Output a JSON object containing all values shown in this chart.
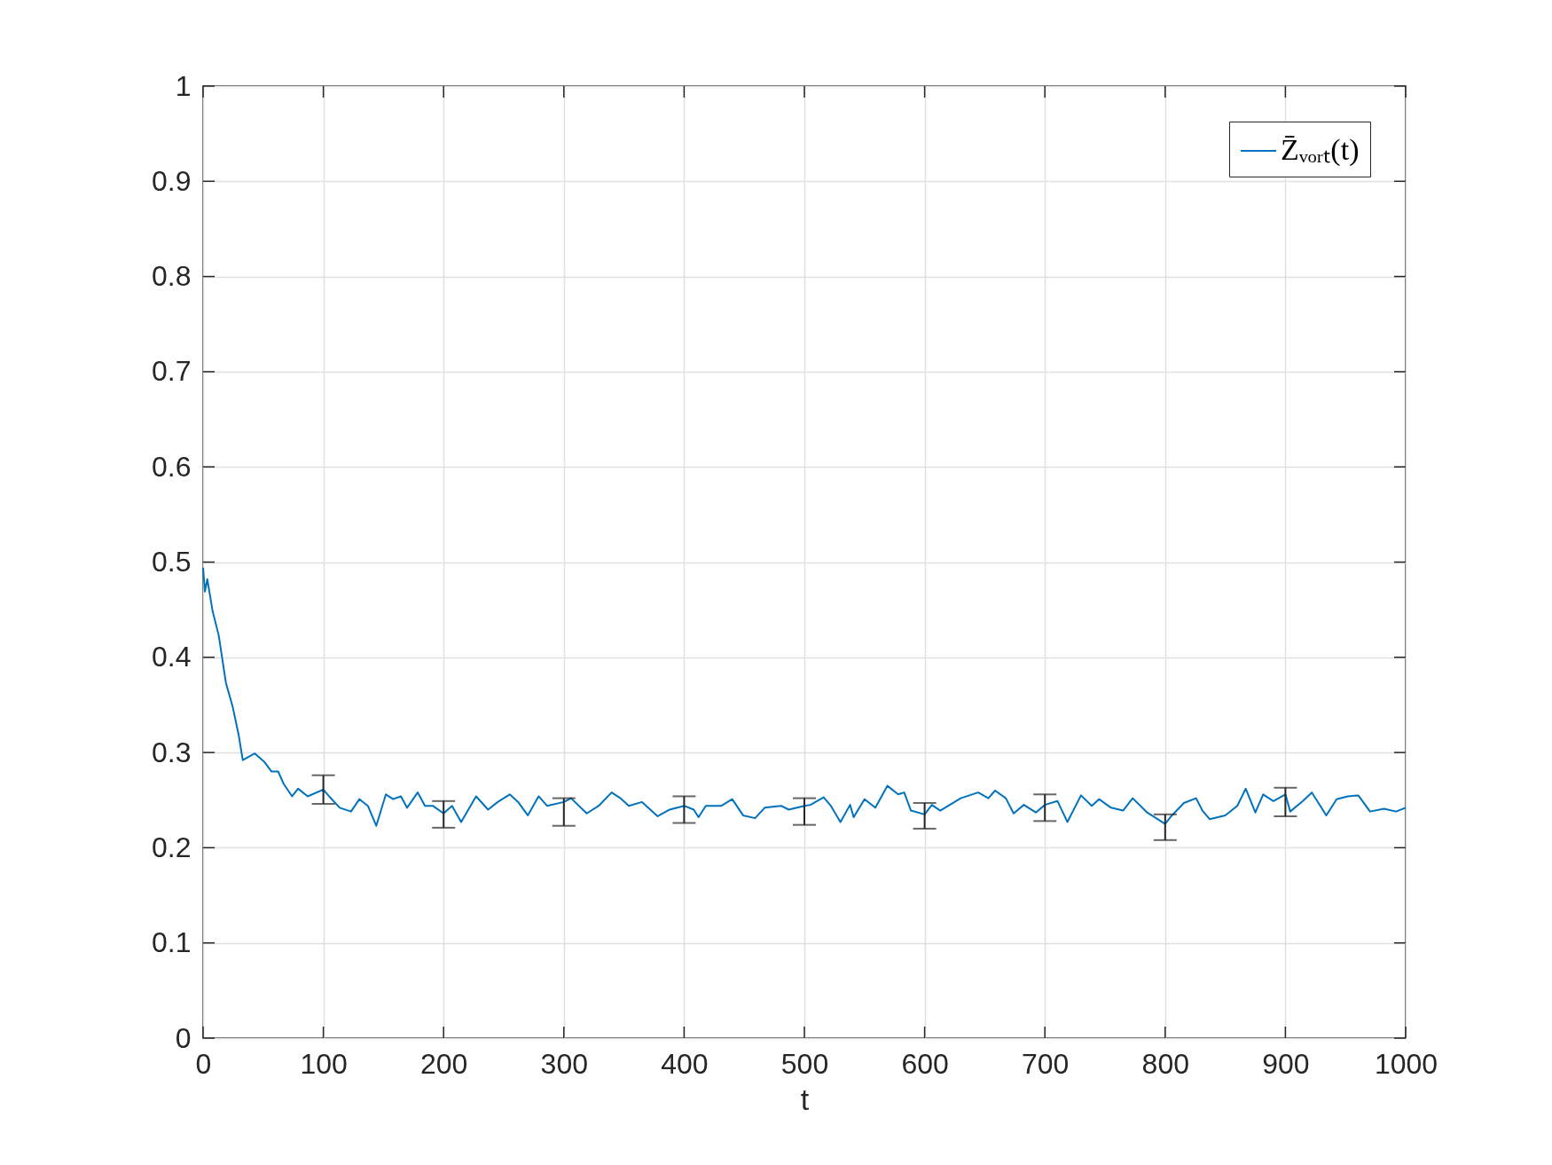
{
  "chart_data": {
    "type": "line",
    "xlabel": "t",
    "xlim": [
      0,
      1000
    ],
    "xticks": [
      0,
      100,
      200,
      300,
      400,
      500,
      600,
      700,
      800,
      900,
      1000
    ],
    "ylim": [
      0,
      1
    ],
    "yticks": [
      0,
      0.1,
      0.2,
      0.3,
      0.4,
      0.5,
      0.6,
      0.7,
      0.8,
      0.9,
      1
    ],
    "grid": true,
    "legend": "top right",
    "line_style": "solid",
    "series": [
      {
        "name": "Z̄ᵥₒᵣₜ(t)",
        "color": "#0072bd",
        "x": [
          0,
          1.5,
          3.5,
          8,
          13,
          19,
          24.6,
          29.5,
          33,
          43,
          51,
          57,
          62.5,
          67,
          74,
          79,
          87,
          100,
          105.5,
          113.6,
          123,
          130,
          137,
          144,
          152,
          158,
          164.5,
          169.6,
          178.5,
          184.5,
          191,
          200,
          207,
          214.6,
          227,
          237,
          245,
          255,
          262,
          270,
          279,
          286,
          300,
          306,
          319,
          329,
          339.7,
          347,
          354,
          365,
          378,
          388,
          400,
          408,
          412,
          418,
          431,
          440,
          449,
          459,
          467,
          480.6,
          487,
          500,
          505,
          516,
          522,
          530,
          538,
          541,
          550,
          559,
          569,
          578,
          583,
          588.6,
          600,
          606,
          613,
          630,
          644.5,
          653,
          658.6,
          667.5,
          674,
          682.5,
          692.5,
          700,
          710.5,
          718.7,
          730,
          739,
          745,
          755,
          765,
          773,
          785,
          800,
          805,
          815.6,
          825.7,
          831,
          837,
          850,
          860,
          867,
          875,
          881.5,
          890,
          900,
          904,
          914.5,
          922,
          934,
          942.6,
          952,
          960.6,
          970.4,
          982,
          992,
          1000
        ],
        "errors": [
          null,
          null,
          null,
          null,
          null,
          null,
          null,
          null,
          null,
          null,
          null,
          null,
          null,
          null,
          null,
          null,
          null,
          [
            0.246,
            0.276
          ],
          null,
          null,
          null,
          null,
          null,
          null,
          null,
          null,
          null,
          null,
          null,
          null,
          null,
          [
            0.221,
            0.249
          ],
          null,
          null,
          null,
          null,
          null,
          null,
          null,
          null,
          null,
          null,
          [
            0.223,
            0.252
          ],
          null,
          null,
          null,
          null,
          null,
          null,
          null,
          null,
          null,
          [
            0.226,
            0.254
          ],
          null,
          null,
          null,
          null,
          null,
          null,
          null,
          null,
          null,
          null,
          [
            0.224,
            0.252
          ],
          null,
          null,
          null,
          null,
          null,
          null,
          null,
          null,
          null,
          null,
          null,
          null,
          [
            0.22,
            0.247
          ],
          null,
          null,
          null,
          null,
          null,
          null,
          null,
          null,
          null,
          null,
          [
            0.228,
            0.256
          ],
          null,
          null,
          null,
          null,
          null,
          null,
          null,
          null,
          null,
          [
            0.208,
            0.235
          ],
          null,
          null,
          null,
          null,
          null,
          null,
          null,
          null,
          null,
          null,
          null,
          [
            0.233,
            0.263
          ],
          null,
          null,
          null,
          null,
          null,
          null,
          null,
          null,
          null,
          null,
          null
        ],
        "values": [
          0.494,
          0.469,
          0.482,
          0.448,
          0.423,
          0.373,
          0.348,
          0.319,
          0.292,
          0.299,
          0.29,
          0.28,
          0.28,
          0.267,
          0.254,
          0.262,
          0.254,
          0.261,
          0.253,
          0.242,
          0.238,
          0.251,
          0.244,
          0.223,
          0.256,
          0.251,
          0.254,
          0.242,
          0.258,
          0.244,
          0.244,
          0.236,
          0.244,
          0.227,
          0.254,
          0.24,
          0.248,
          0.256,
          0.248,
          0.234,
          0.254,
          0.244,
          0.248,
          0.252,
          0.236,
          0.244,
          0.258,
          0.252,
          0.244,
          0.248,
          0.233,
          0.24,
          0.244,
          0.24,
          0.232,
          0.244,
          0.244,
          0.251,
          0.234,
          0.231,
          0.242,
          0.244,
          0.24,
          0.244,
          0.245,
          0.253,
          0.244,
          0.227,
          0.245,
          0.232,
          0.251,
          0.242,
          0.265,
          0.256,
          0.258,
          0.239,
          0.235,
          0.245,
          0.239,
          0.252,
          0.258,
          0.252,
          0.26,
          0.252,
          0.236,
          0.245,
          0.237,
          0.245,
          0.249,
          0.227,
          0.255,
          0.244,
          0.251,
          0.242,
          0.239,
          0.252,
          0.237,
          0.225,
          0.233,
          0.247,
          0.252,
          0.239,
          0.23,
          0.234,
          0.244,
          0.262,
          0.237,
          0.256,
          0.249,
          0.256,
          0.238,
          0.249,
          0.258,
          0.234,
          0.251,
          0.254,
          0.255,
          0.238,
          0.241,
          0.238,
          0.242
        ]
      }
    ]
  }
}
